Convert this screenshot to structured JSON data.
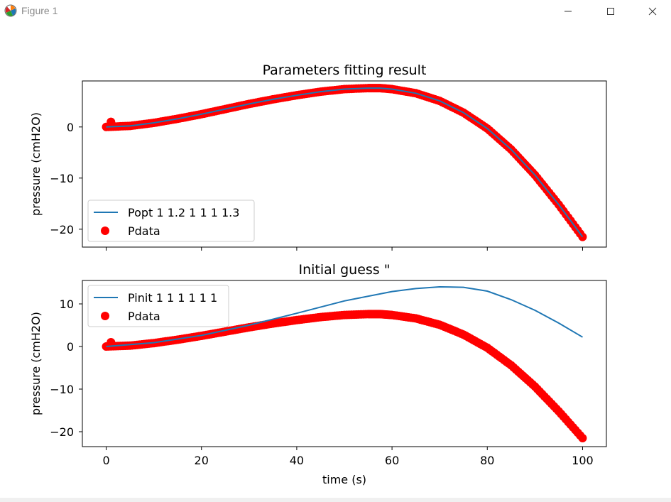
{
  "window": {
    "title": "Figure 1"
  },
  "chart_data": [
    {
      "type": "line",
      "title": "Parameters fitting result",
      "xlabel": "",
      "ylabel": "pressure (cmH2O)",
      "xlim": [
        -5,
        105
      ],
      "ylim": [
        -23.5,
        9
      ],
      "xticks": [
        0,
        20,
        40,
        60,
        80,
        100
      ],
      "yticks": [
        0,
        -10,
        -20
      ],
      "show_xtick_labels": false,
      "legend_position": "lower-left",
      "series": [
        {
          "name": "Popt 1 1.2 1 1 1 1.3",
          "style": "line",
          "color": "#1f77b4",
          "x": [
            0,
            5,
            10,
            15,
            20,
            25,
            30,
            35,
            40,
            45,
            50,
            55,
            57.5,
            60,
            65,
            70,
            75,
            80,
            85,
            90,
            95,
            100
          ],
          "y": [
            0,
            0.2,
            0.8,
            1.6,
            2.5,
            3.5,
            4.5,
            5.4,
            6.2,
            6.9,
            7.4,
            7.6,
            7.6,
            7.4,
            6.6,
            5.1,
            2.8,
            -0.3,
            -4.4,
            -9.4,
            -15.2,
            -21.5
          ]
        },
        {
          "name": "Pdata",
          "style": "scatter",
          "color": "#ff0000",
          "x": [
            0,
            5,
            10,
            15,
            20,
            25,
            30,
            35,
            40,
            45,
            50,
            55,
            57.5,
            60,
            65,
            70,
            75,
            80,
            85,
            90,
            95,
            100
          ],
          "y": [
            0,
            0.2,
            0.8,
            1.6,
            2.5,
            3.5,
            4.5,
            5.4,
            6.2,
            6.9,
            7.4,
            7.6,
            7.6,
            7.4,
            6.6,
            5.1,
            2.8,
            -0.3,
            -4.4,
            -9.4,
            -15.2,
            -21.5
          ],
          "outliers": [
            [
              1,
              1
            ]
          ]
        }
      ]
    },
    {
      "type": "line",
      "title": "Initial guess \"",
      "xlabel": "time (s)",
      "ylabel": "pressure (cmH2O)",
      "xlim": [
        -5,
        105
      ],
      "ylim": [
        -23.5,
        15.5
      ],
      "xticks": [
        0,
        20,
        40,
        60,
        80,
        100
      ],
      "yticks": [
        10,
        0,
        -10,
        -20
      ],
      "show_xtick_labels": true,
      "legend_position": "upper-left",
      "series": [
        {
          "name": "Pinit 1 1 1 1 1 1",
          "style": "line",
          "color": "#1f77b4",
          "x": [
            0,
            10,
            20,
            30,
            40,
            50,
            60,
            65,
            70,
            75,
            80,
            85,
            90,
            95,
            100
          ],
          "y": [
            0,
            0.9,
            2.6,
            5.0,
            7.8,
            10.7,
            12.9,
            13.6,
            14.0,
            13.9,
            13.0,
            11.0,
            8.5,
            5.5,
            2.2
          ]
        },
        {
          "name": "Pdata",
          "style": "scatter",
          "color": "#ff0000",
          "x": [
            0,
            5,
            10,
            15,
            20,
            25,
            30,
            35,
            40,
            45,
            50,
            55,
            57.5,
            60,
            65,
            70,
            75,
            80,
            85,
            90,
            95,
            100
          ],
          "y": [
            0,
            0.2,
            0.8,
            1.6,
            2.5,
            3.5,
            4.5,
            5.4,
            6.2,
            6.9,
            7.4,
            7.6,
            7.6,
            7.4,
            6.6,
            5.1,
            2.8,
            -0.3,
            -4.4,
            -9.4,
            -15.2,
            -21.5
          ],
          "outliers": [
            [
              1,
              1
            ]
          ]
        }
      ]
    }
  ]
}
